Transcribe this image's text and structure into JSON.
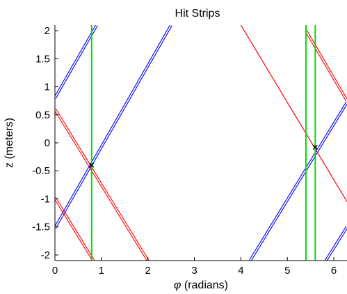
{
  "chart_data": {
    "type": "line",
    "title": "Hit Strips",
    "xlabel_symbol": "φ",
    "xlabel_rest": " (radians)",
    "ylabel": "z (meters)",
    "xlim": [
      0,
      6.283
    ],
    "ylim": [
      -2.1,
      2.1
    ],
    "xticks": [
      0,
      1,
      2,
      3,
      4,
      5,
      6
    ],
    "xtick_labels": [
      "0",
      "1",
      "2",
      "3",
      "4",
      "5",
      "6"
    ],
    "yticks": [
      -2,
      -1.5,
      -1,
      -0.5,
      0,
      0.5,
      1,
      1.5,
      2
    ],
    "ytick_labels": [
      "-2",
      "-1.5",
      "-1",
      "-0.5",
      "0",
      "0.5",
      "1",
      "1.5",
      "2"
    ],
    "grid": false,
    "colors": {
      "blue": "#0000ff",
      "red": "#ff0000",
      "green": "#00dd00",
      "black": "#000000"
    },
    "series": [
      {
        "color": "blue",
        "style": "double",
        "x": [
          0,
          0.9
        ],
        "y": [
          0.8,
          2.1
        ]
      },
      {
        "color": "blue",
        "style": "double",
        "x": [
          0,
          2.5
        ],
        "y": [
          -1.52,
          2.1
        ]
      },
      {
        "color": "blue",
        "style": "double",
        "x": [
          4.2,
          6.283
        ],
        "y": [
          -2.1,
          0.72
        ]
      },
      {
        "color": "blue",
        "style": "double",
        "x": [
          5.83,
          6.283
        ],
        "y": [
          -2.1,
          -1.5
        ]
      },
      {
        "color": "red",
        "style": "double",
        "x": [
          0,
          2.0
        ],
        "y": [
          0.6,
          -2.1
        ]
      },
      {
        "color": "red",
        "style": "double",
        "x": [
          0,
          0.83
        ],
        "y": [
          -0.98,
          -2.1
        ]
      },
      {
        "color": "red",
        "style": "single",
        "x": [
          4.0,
          6.283
        ],
        "y": [
          2.1,
          -1.05
        ]
      },
      {
        "color": "red",
        "style": "double",
        "x": [
          5.4,
          6.283
        ],
        "y": [
          2.0,
          0.75
        ]
      },
      {
        "color": "green",
        "style": "single",
        "x": [
          0.79,
          0.79
        ],
        "y": [
          -2.1,
          2.1
        ]
      },
      {
        "color": "green",
        "style": "single",
        "x": [
          5.4,
          5.4
        ],
        "y": [
          -2.1,
          2.1
        ]
      },
      {
        "color": "green",
        "style": "single",
        "x": [
          5.6,
          5.6
        ],
        "y": [
          -2.1,
          2.1
        ]
      }
    ],
    "points": [
      {
        "x": 0.79,
        "y": -0.4
      },
      {
        "x": 5.6,
        "y": -0.08
      }
    ]
  }
}
